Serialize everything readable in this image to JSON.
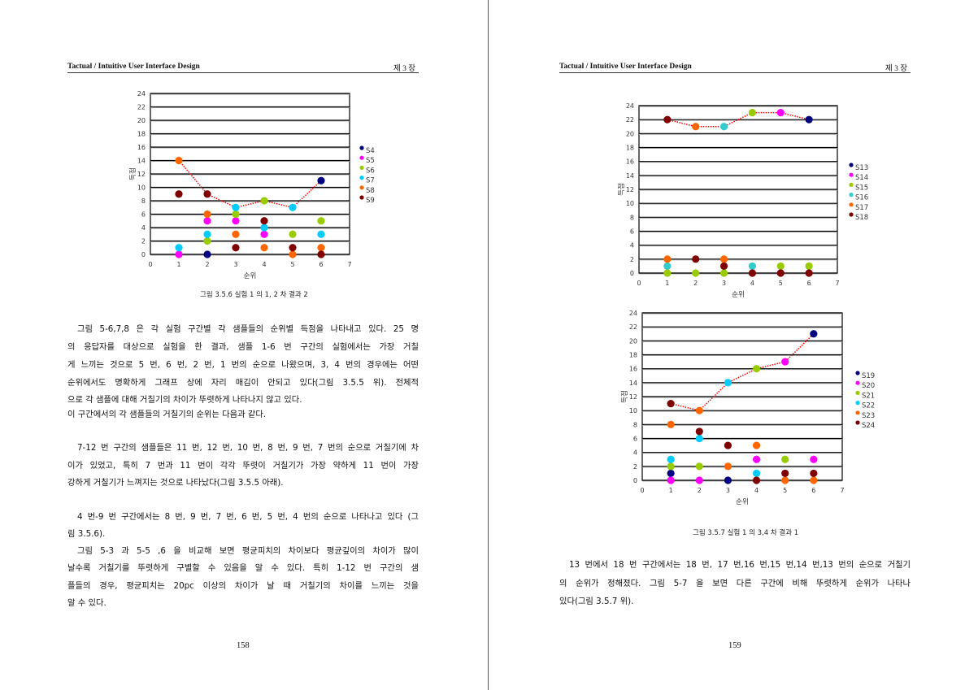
{
  "left_page": {
    "header_title": "Tactual / Intuitive User Interface Design",
    "header_chapter": "제 3 장",
    "figure_caption": "그림 3.5.6 실험 1 의 1, 2 차 결과 2",
    "paragraphs": [
      {
        "lines": [
          "그림 5-6,7,8 은 각 실험 구간별 각 샘플들의 순위별 득점을 나타내고 있다. 25 명",
          "의 응답자를 대상으로 실험을 한 결과, 샘플 1-6 번 구간의 실험에서는 가장 거칠",
          "게 느끼는 것으로 5 번, 6 번, 2 번, 1 번의 순으로 나왔으며, 3, 4 번의 경우에는 어떤",
          "순위에서도 명확하게 그래프 상에 자리 매김이 안되고 있다(그림 3.5.5 위). 전체적",
          "으로 각 샘플에 대해 거칠기의 차이가 뚜렷하게 나타나지 않고 있다.",
          "이 구간에서의 각 샘플들의 거칠기의 순위는 다음과 같다."
        ]
      },
      {
        "lines": [
          "7-12 번 구간의 샘플들은 11 번, 12 번, 10 번, 8 번, 9 번, 7 번의 순으로 거칠기에 차",
          "이가 있었고, 특히 7 번과 11 번이 각각 뚜렷이 거칠기가 가장 약하게 11 번이 가장",
          "강하게 거칠기가 느껴지는 것으로 나타났다(그림 3.5.5 아래)."
        ]
      },
      {
        "lines": [
          "4 번-9 번 구간에서는 8 번, 9 번, 7 번, 6 번, 5 번, 4 번의 순으로 나타나고 있다 (그",
          "림 3.5.6).",
          "그림 5-3 과 5-5 ,6 을 비교해 보면 평균피치의 차이보다 평균깊이의 차이가 많이",
          "날수록 거칠기를 뚜렷하게 구별할 수 있음을 알 수 있다. 특히 1-12 번 구간의 샘",
          "플들의 경우, 평균피치는 20pc 이상의 차이가 날 때 거칠기의 차이를 느끼는 것을",
          "알 수 있다."
        ]
      }
    ],
    "page_number": "158"
  },
  "right_page": {
    "header_title": "Tactual / Intuitive User Interface Design",
    "header_chapter": "제 3 장",
    "figure_caption": "그림 3.5.7 실험 1 의 3,4 차 결과 1",
    "paragraphs": [
      {
        "lines": [
          "13 번에서 18 번 구간에서는 18 번, 17 번,16 번,15 번,14 번,13 번의 순으로 거칠기",
          "의 순위가 정해졌다. 그림 5-7 을 보면 다른 구간에 비해 뚜렷하게 순위가 나타나",
          "있다(그림 3.5.7 위)."
        ]
      }
    ],
    "page_number": "159"
  },
  "colors": {
    "navy": "#000080",
    "magenta": "#ff00ff",
    "green": "#99cc00",
    "cyan": "#00ccff",
    "teal": "#33cccc",
    "orange": "#ff6600",
    "darkred": "#800000",
    "trend": "#ff0000"
  },
  "chart_data": [
    {
      "type": "scatter",
      "xlabel": "순위",
      "ylabel": "득점",
      "xlim": [
        0,
        7
      ],
      "ylim": [
        0,
        24
      ],
      "xticks": [
        0,
        1,
        2,
        3,
        4,
        5,
        6,
        7
      ],
      "yticks": [
        0,
        2,
        4,
        6,
        8,
        10,
        12,
        14,
        16,
        18,
        20,
        22,
        24
      ],
      "grid": true,
      "legend_position": "right",
      "series": [
        {
          "name": "S4",
          "color": "#000080",
          "points": [
            [
              2,
              0
            ],
            [
              6,
              11
            ]
          ]
        },
        {
          "name": "S5",
          "color": "#ff00ff",
          "points": [
            [
              1,
              0
            ],
            [
              2,
              5
            ],
            [
              3,
              5
            ],
            [
              4,
              3
            ]
          ]
        },
        {
          "name": "S6",
          "color": "#99cc00",
          "points": [
            [
              2,
              2
            ],
            [
              3,
              6
            ],
            [
              4,
              8
            ],
            [
              5,
              3
            ],
            [
              6,
              5
            ]
          ]
        },
        {
          "name": "S7",
          "color": "#00ccff",
          "points": [
            [
              1,
              1
            ],
            [
              2,
              3
            ],
            [
              3,
              7
            ],
            [
              4,
              4
            ],
            [
              5,
              7
            ],
            [
              6,
              3
            ]
          ]
        },
        {
          "name": "S8",
          "color": "#ff6600",
          "points": [
            [
              1,
              14
            ],
            [
              2,
              6
            ],
            [
              3,
              3
            ],
            [
              4,
              1
            ],
            [
              5,
              0
            ],
            [
              6,
              1
            ]
          ]
        },
        {
          "name": "S9",
          "color": "#800000",
          "points": [
            [
              1,
              9
            ],
            [
              2,
              9
            ],
            [
              3,
              1
            ],
            [
              4,
              5
            ],
            [
              5,
              1
            ],
            [
              6,
              0
            ]
          ]
        }
      ],
      "trend_line": {
        "style": "dotted",
        "color": "#ff0000",
        "values": [
          [
            1,
            14
          ],
          [
            2,
            9
          ],
          [
            3,
            7
          ],
          [
            4,
            8
          ],
          [
            5,
            7
          ],
          [
            6,
            11
          ]
        ]
      }
    },
    {
      "type": "scatter",
      "xlabel": "순위",
      "ylabel": "득점",
      "xlim": [
        0,
        7
      ],
      "ylim": [
        0,
        24
      ],
      "xticks": [
        0,
        1,
        2,
        3,
        4,
        5,
        6,
        7
      ],
      "yticks": [
        0,
        2,
        4,
        6,
        8,
        10,
        12,
        14,
        16,
        18,
        20,
        22,
        24
      ],
      "grid": true,
      "legend_position": "right",
      "series": [
        {
          "name": "S13",
          "color": "#000080",
          "points": [
            [
              6,
              22
            ]
          ]
        },
        {
          "name": "S14",
          "color": "#ff00ff",
          "points": [
            [
              5,
              23
            ]
          ]
        },
        {
          "name": "S15",
          "color": "#99cc00",
          "points": [
            [
              1,
              0
            ],
            [
              2,
              0
            ],
            [
              3,
              0
            ],
            [
              4,
              23
            ],
            [
              5,
              1
            ],
            [
              6,
              1
            ]
          ]
        },
        {
          "name": "S16",
          "color": "#33cccc",
          "points": [
            [
              1,
              1
            ],
            [
              3,
              21
            ],
            [
              4,
              1
            ]
          ]
        },
        {
          "name": "S17",
          "color": "#ff6600",
          "points": [
            [
              1,
              2
            ],
            [
              2,
              21
            ],
            [
              3,
              2
            ]
          ]
        },
        {
          "name": "S18",
          "color": "#800000",
          "points": [
            [
              1,
              22
            ],
            [
              2,
              2
            ],
            [
              3,
              1
            ],
            [
              4,
              0
            ],
            [
              5,
              0
            ],
            [
              6,
              0
            ]
          ]
        }
      ],
      "trend_line": {
        "style": "dotted",
        "color": "#ff0000",
        "values": [
          [
            1,
            22
          ],
          [
            2,
            21
          ],
          [
            3,
            21
          ],
          [
            4,
            23
          ],
          [
            5,
            23
          ],
          [
            6,
            22
          ]
        ]
      }
    },
    {
      "type": "scatter",
      "xlabel": "순위",
      "ylabel": "득점",
      "xlim": [
        0,
        7
      ],
      "ylim": [
        0,
        24
      ],
      "xticks": [
        0,
        1,
        2,
        3,
        4,
        5,
        6,
        7
      ],
      "yticks": [
        0,
        2,
        4,
        6,
        8,
        10,
        12,
        14,
        16,
        18,
        20,
        22,
        24
      ],
      "grid": true,
      "legend_position": "right",
      "series": [
        {
          "name": "S19",
          "color": "#000080",
          "points": [
            [
              1,
              1
            ],
            [
              3,
              0
            ],
            [
              6,
              21
            ]
          ]
        },
        {
          "name": "S20",
          "color": "#ff00ff",
          "points": [
            [
              1,
              0
            ],
            [
              2,
              0
            ],
            [
              4,
              3
            ],
            [
              5,
              17
            ],
            [
              6,
              3
            ]
          ]
        },
        {
          "name": "S21",
          "color": "#99cc00",
          "points": [
            [
              1,
              2
            ],
            [
              2,
              2
            ],
            [
              4,
              16
            ],
            [
              5,
              3
            ]
          ]
        },
        {
          "name": "S22",
          "color": "#00ccff",
          "points": [
            [
              1,
              3
            ],
            [
              2,
              6
            ],
            [
              3,
              14
            ],
            [
              4,
              1
            ]
          ]
        },
        {
          "name": "S23",
          "color": "#ff6600",
          "points": [
            [
              1,
              8
            ],
            [
              2,
              10
            ],
            [
              3,
              2
            ],
            [
              4,
              5
            ],
            [
              5,
              0
            ],
            [
              6,
              0
            ]
          ]
        },
        {
          "name": "S24",
          "color": "#800000",
          "points": [
            [
              1,
              11
            ],
            [
              2,
              7
            ],
            [
              3,
              5
            ],
            [
              4,
              0
            ],
            [
              5,
              1
            ],
            [
              6,
              1
            ]
          ]
        }
      ],
      "trend_line": {
        "style": "dotted",
        "color": "#ff0000",
        "values": [
          [
            1,
            11
          ],
          [
            2,
            10
          ],
          [
            3,
            14
          ],
          [
            4,
            16
          ],
          [
            5,
            17
          ],
          [
            6,
            21
          ]
        ]
      }
    }
  ]
}
